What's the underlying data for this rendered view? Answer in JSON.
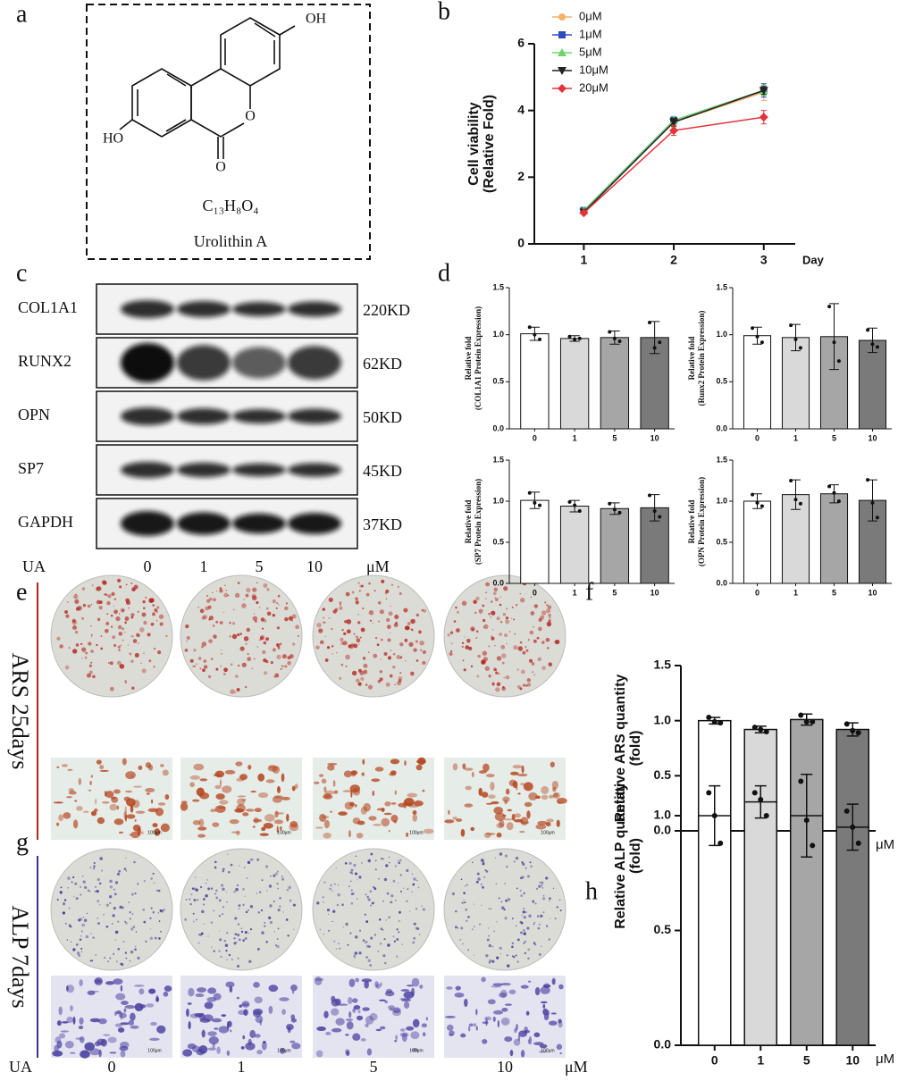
{
  "panel_labels": [
    "a",
    "b",
    "c",
    "d",
    "e",
    "f",
    "g",
    "h"
  ],
  "structure": {
    "substituents": [
      "OH",
      "HO"
    ],
    "ring_oxygen": "O",
    "carbonyl_oxygen": "O",
    "formula": "C₁₃H₈O₄",
    "name": "Urolithin A"
  },
  "western_blot": {
    "rows": [
      {
        "protein": "COL1A1",
        "size": "220KD"
      },
      {
        "protein": "RUNX2",
        "size": "62KD"
      },
      {
        "protein": "OPN",
        "size": "50KD"
      },
      {
        "protein": "SP7",
        "size": "45KD"
      },
      {
        "protein": "GAPDH",
        "size": "37KD"
      }
    ],
    "treatment": "UA",
    "doses": [
      "0",
      "1",
      "5",
      "10"
    ],
    "unit": "μM"
  },
  "staining": {
    "rows": [
      {
        "label": "ARS 25days",
        "color": "#b3261e"
      },
      {
        "label": "ALP 7days",
        "color": "#3a3296"
      }
    ],
    "scale_bar": "100μm",
    "treatment": "UA",
    "doses": [
      "0",
      "1",
      "5",
      "10"
    ],
    "unit": "μM"
  },
  "chart_data": [
    {
      "type": "line",
      "x": [
        1,
        2,
        3
      ],
      "xlim": [
        0.45,
        3.35
      ],
      "xticks": [
        1,
        2,
        3
      ],
      "xlabel": "Day",
      "ylabel": [
        "Cell viability",
        "(Relative Fold)"
      ],
      "ylim": [
        0,
        6
      ],
      "yticks": [
        0,
        2,
        4,
        6
      ],
      "legend": "upper-left",
      "series": [
        {
          "name": "0μM",
          "color": "#f4b26a",
          "marker": "circle",
          "values": [
            1.0,
            3.65,
            4.55
          ],
          "errors": [
            0.05,
            0.15,
            0.25
          ]
        },
        {
          "name": "1μM",
          "color": "#2b4bbf",
          "marker": "square",
          "values": [
            1.0,
            3.7,
            4.6
          ],
          "errors": [
            0.05,
            0.12,
            0.2
          ]
        },
        {
          "name": "5μM",
          "color": "#6fd46f",
          "marker": "triangle",
          "values": [
            1.0,
            3.7,
            4.6
          ],
          "errors": [
            0.05,
            0.12,
            0.15
          ]
        },
        {
          "name": "10μM",
          "color": "#222222",
          "marker": "triangle-down",
          "values": [
            0.95,
            3.65,
            4.6
          ],
          "errors": [
            0.05,
            0.12,
            0.12
          ]
        },
        {
          "name": "20μM",
          "color": "#e4323a",
          "marker": "diamond",
          "values": [
            0.93,
            3.4,
            3.8
          ],
          "errors": [
            0.05,
            0.15,
            0.2
          ]
        }
      ]
    },
    {
      "type": "bar",
      "categories": [
        "0",
        "1",
        "5",
        "10"
      ],
      "colors": [
        "#ffffff",
        "#d9d9d9",
        "#a6a6a6",
        "#7a7a7a"
      ],
      "ylim": [
        0,
        1.5
      ],
      "yticks": [
        {
          "value": 0,
          "label": "0.0"
        },
        {
          "value": 0.5,
          "label": "0.5"
        },
        {
          "value": 1,
          "label": "1.0"
        },
        {
          "value": 1.5,
          "label": "1.5"
        }
      ],
      "ylabel": [
        "Relative fold",
        "(COL1A1 Protein Expression)"
      ],
      "values": [
        1.01,
        0.96,
        0.97,
        0.97
      ],
      "errors": [
        0.07,
        0.03,
        0.07,
        0.17
      ],
      "points": [
        [
          1.08,
          1.0,
          0.95
        ],
        [
          0.98,
          0.95,
          0.96
        ],
        [
          1.03,
          0.96,
          0.93
        ],
        [
          1.13,
          0.86,
          0.92
        ]
      ]
    },
    {
      "type": "bar",
      "categories": [
        "0",
        "1",
        "5",
        "10"
      ],
      "colors": [
        "#ffffff",
        "#d9d9d9",
        "#a6a6a6",
        "#7a7a7a"
      ],
      "ylim": [
        0,
        1.5
      ],
      "yticks": [
        {
          "value": 0,
          "label": "0.0"
        },
        {
          "value": 0.5,
          "label": "0.5"
        },
        {
          "value": 1,
          "label": "1.0"
        },
        {
          "value": 1.5,
          "label": "1.5"
        }
      ],
      "ylabel": [
        "Relative fold",
        "(Runx2 Protein Expression)"
      ],
      "values": [
        0.99,
        0.97,
        0.98,
        0.94
      ],
      "errors": [
        0.09,
        0.14,
        0.35,
        0.13
      ],
      "points": [
        [
          1.07,
          0.98,
          0.92
        ],
        [
          1.1,
          0.95,
          0.86
        ],
        [
          1.3,
          0.92,
          0.72
        ],
        [
          1.05,
          0.9,
          0.87
        ]
      ]
    },
    {
      "type": "bar",
      "categories": [
        "0",
        "1",
        "5",
        "10"
      ],
      "colors": [
        "#ffffff",
        "#d9d9d9",
        "#a6a6a6",
        "#7a7a7a"
      ],
      "ylim": [
        0,
        1.5
      ],
      "yticks": [
        {
          "value": 0,
          "label": "0.0"
        },
        {
          "value": 0.5,
          "label": "0.5"
        },
        {
          "value": 1,
          "label": "1.0"
        },
        {
          "value": 1.5,
          "label": "1.5"
        }
      ],
      "ylabel": [
        "Relative fold",
        "(SP7 Protein Expression)"
      ],
      "values": [
        1.01,
        0.94,
        0.91,
        0.92
      ],
      "errors": [
        0.1,
        0.07,
        0.07,
        0.16
      ],
      "points": [
        [
          1.1,
          0.98,
          0.95
        ],
        [
          0.99,
          0.95,
          0.88
        ],
        [
          0.97,
          0.9,
          0.86
        ],
        [
          1.07,
          0.88,
          0.81
        ]
      ]
    },
    {
      "type": "bar",
      "categories": [
        "0",
        "1",
        "5",
        "10"
      ],
      "colors": [
        "#ffffff",
        "#d9d9d9",
        "#a6a6a6",
        "#7a7a7a"
      ],
      "ylim": [
        0,
        1.5
      ],
      "yticks": [
        {
          "value": 0,
          "label": "0.0"
        },
        {
          "value": 0.5,
          "label": "0.5"
        },
        {
          "value": 1,
          "label": "1.0"
        },
        {
          "value": 1.5,
          "label": "1.5"
        }
      ],
      "ylabel": [
        "Relative fold",
        "(OPN Protein Expression)"
      ],
      "values": [
        1.0,
        1.08,
        1.09,
        1.01
      ],
      "errors": [
        0.09,
        0.18,
        0.11,
        0.25
      ],
      "points": [
        [
          1.08,
          0.98,
          0.94
        ],
        [
          1.25,
          1.02,
          0.97
        ],
        [
          1.18,
          1.1,
          1.0
        ],
        [
          1.26,
          0.98,
          0.8
        ]
      ]
    },
    {
      "type": "bar",
      "categories": [
        "0",
        "1",
        "5",
        "10"
      ],
      "colors": [
        "#ffffff",
        "#d9d9d9",
        "#a6a6a6",
        "#7a7a7a"
      ],
      "ylim": [
        0,
        1.5
      ],
      "yticks": [
        {
          "value": 0,
          "label": "0.0"
        },
        {
          "value": 0.5,
          "label": "0.5"
        },
        {
          "value": 1,
          "label": "1.0"
        },
        {
          "value": 1.5,
          "label": "1.5"
        }
      ],
      "ylabel": [
        "Relative ARS quantity",
        "(fold)"
      ],
      "xunit": "μM",
      "values": [
        1.0,
        0.92,
        1.01,
        0.92
      ],
      "errors": [
        0.03,
        0.03,
        0.05,
        0.06
      ],
      "points": [
        [
          1.03,
          0.99,
          0.98
        ],
        [
          0.94,
          0.92,
          0.9
        ],
        [
          1.05,
          0.99,
          0.99
        ],
        [
          0.97,
          0.91,
          0.89
        ]
      ]
    },
    {
      "type": "bar",
      "categories": [
        "0",
        "1",
        "5",
        "10"
      ],
      "colors": [
        "#ffffff",
        "#d9d9d9",
        "#a6a6a6",
        "#7a7a7a"
      ],
      "ylim": [
        0,
        1.65
      ],
      "yticks": [
        {
          "value": 0,
          "label": "0.0"
        },
        {
          "value": 0.5,
          "label": "0.5"
        },
        {
          "value": 1,
          "label": "1.0"
        }
      ],
      "ylabel": [
        "Relative ALP quantity",
        "(fold)"
      ],
      "xunit": "μM",
      "values": [
        1.0,
        1.06,
        1.0,
        0.95
      ],
      "errors": [
        0.13,
        0.07,
        0.18,
        0.1
      ],
      "points": [
        [
          1.1,
          1.0,
          0.88
        ],
        [
          1.1,
          1.07,
          1.0
        ],
        [
          1.15,
          0.98,
          0.87
        ],
        [
          1.02,
          0.95,
          0.88
        ]
      ]
    }
  ]
}
